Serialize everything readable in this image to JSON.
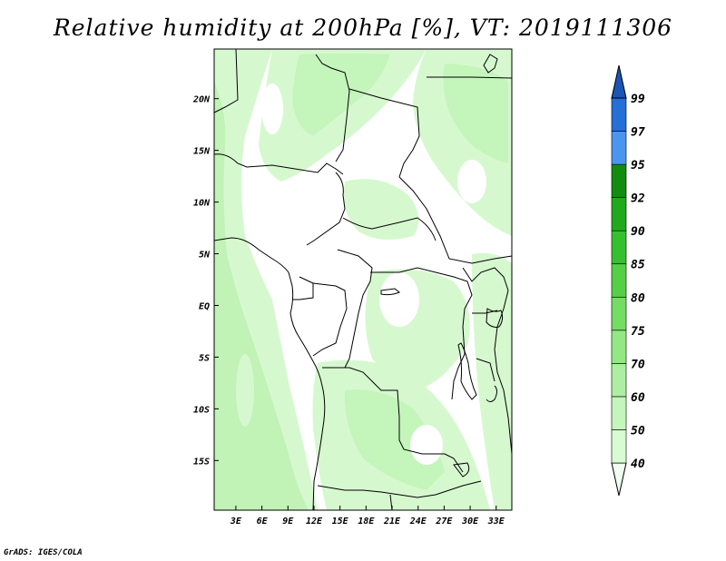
{
  "title": "Relative humidity at 200hPa [%], VT: 2019111306",
  "credit": "GrADS: IGES/COLA",
  "map": {
    "lat_ticks": [
      "20N",
      "15N",
      "10N",
      "5N",
      "EQ",
      "5S",
      "10S",
      "15S"
    ],
    "lon_ticks": [
      "3E",
      "6E",
      "9E",
      "12E",
      "15E",
      "18E",
      "21E",
      "24E",
      "27E",
      "30E",
      "33E"
    ],
    "lon_range": [
      0.5,
      34.8
    ],
    "lat_range": [
      -19.8,
      24.8
    ]
  },
  "colorbar": {
    "levels": [
      "40",
      "50",
      "60",
      "70",
      "75",
      "80",
      "85",
      "90",
      "92",
      "95",
      "97",
      "99"
    ],
    "colors": [
      "#f0fff0",
      "#d9fbd4",
      "#c4f5bb",
      "#aeeea2",
      "#93e885",
      "#74dd63",
      "#54cf46",
      "#36c030",
      "#20a91d",
      "#128c0f",
      "#4a96ee",
      "#2470d8",
      "#1a56b4"
    ]
  },
  "legend_colors": {
    "light_green": "#d6f8cf",
    "mid_green": "#c1f2b6",
    "boundary": "#000000"
  }
}
